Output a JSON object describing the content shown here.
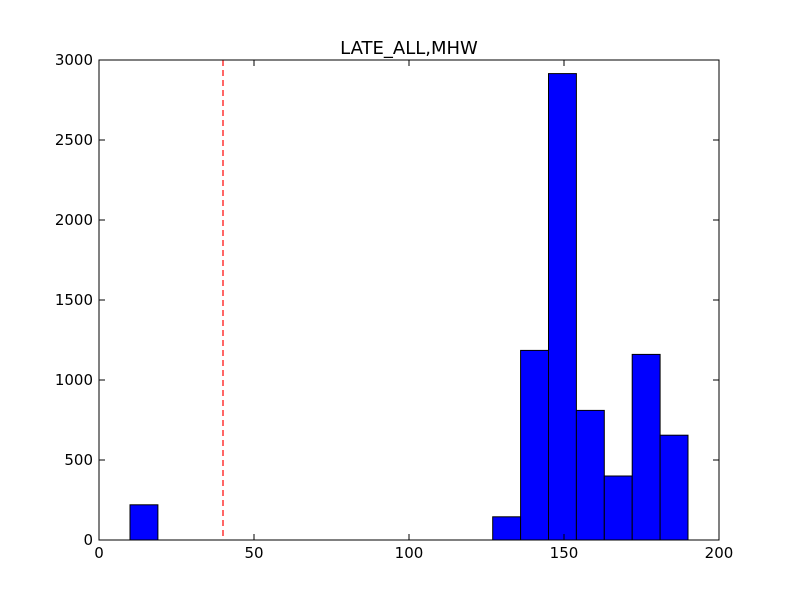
{
  "chart_data": {
    "type": "bar",
    "title": "LATE_ALL,MHW",
    "xlabel": "",
    "ylabel": "",
    "xlim": [
      0,
      200
    ],
    "ylim": [
      0,
      3000
    ],
    "xticks": [
      0,
      50,
      100,
      150,
      200
    ],
    "xtick_labels": [
      "0",
      "50",
      "100",
      "150",
      "200"
    ],
    "yticks": [
      0,
      500,
      1000,
      1500,
      2000,
      2500,
      3000
    ],
    "ytick_labels": [
      "0",
      "500",
      "1000",
      "1500",
      "2000",
      "2500",
      "3000"
    ],
    "grid": false,
    "bar_color": "#0000ff",
    "reference_line": {
      "x": 40,
      "color": "#ff0000",
      "style": "dashed"
    },
    "bins": [
      {
        "x0": 10.0,
        "x1": 19.0,
        "value": 220
      },
      {
        "x0": 127.0,
        "x1": 136.0,
        "value": 145
      },
      {
        "x0": 136.0,
        "x1": 145.0,
        "value": 1185
      },
      {
        "x0": 145.0,
        "x1": 154.0,
        "value": 2915
      },
      {
        "x0": 154.0,
        "x1": 163.0,
        "value": 810
      },
      {
        "x0": 163.0,
        "x1": 172.0,
        "value": 400
      },
      {
        "x0": 172.0,
        "x1": 181.0,
        "value": 1160
      },
      {
        "x0": 181.0,
        "x1": 190.0,
        "value": 655
      }
    ]
  }
}
